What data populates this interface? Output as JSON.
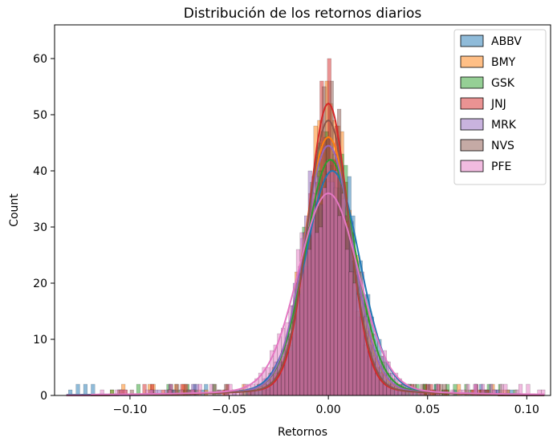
{
  "chart_data": {
    "type": "histogram",
    "title": "Distribución de los retornos diarios",
    "xlabel": "Retornos",
    "ylabel": "Count",
    "xlim": [
      -0.138,
      0.112
    ],
    "ylim": [
      0,
      66
    ],
    "xticks": [
      -0.1,
      -0.05,
      0.0,
      0.05,
      0.1
    ],
    "xtick_labels": [
      "−0.10",
      "−0.05",
      "0.00",
      "0.05",
      "0.10"
    ],
    "yticks": [
      0,
      10,
      20,
      30,
      40,
      50,
      60
    ],
    "ytick_labels": [
      "0",
      "10",
      "20",
      "30",
      "40",
      "50",
      "60"
    ],
    "grid": false,
    "legend_position": "top-right",
    "kde": true,
    "series": [
      {
        "name": "ABBV",
        "color": "#1f77b4",
        "peak": 40,
        "center": 0.002,
        "sigma": 0.0135,
        "range": [
          -0.131,
          0.092
        ]
      },
      {
        "name": "BMY",
        "color": "#ff7f0e",
        "peak": 46,
        "center": 0.0,
        "sigma": 0.0118,
        "range": [
          -0.11,
          0.09
        ]
      },
      {
        "name": "GSK",
        "color": "#2ca02c",
        "peak": 42,
        "center": 0.001,
        "sigma": 0.0125,
        "range": [
          -0.11,
          0.095
        ]
      },
      {
        "name": "JNJ",
        "color": "#d62728",
        "peak": 52,
        "center": 0.0,
        "sigma": 0.01,
        "range": [
          -0.105,
          0.08
        ]
      },
      {
        "name": "MRK",
        "color": "#9467bd",
        "peak": 44.5,
        "center": 0.0,
        "sigma": 0.012,
        "range": [
          -0.09,
          0.085
        ]
      },
      {
        "name": "NVS",
        "color": "#8c564b",
        "peak": 49,
        "center": 0.0,
        "sigma": 0.0105,
        "range": [
          -0.1,
          0.08
        ]
      },
      {
        "name": "PFE",
        "color": "#e377c2",
        "peak": 36,
        "center": 0.0,
        "sigma": 0.015,
        "range": [
          -0.115,
          0.108
        ]
      }
    ]
  }
}
